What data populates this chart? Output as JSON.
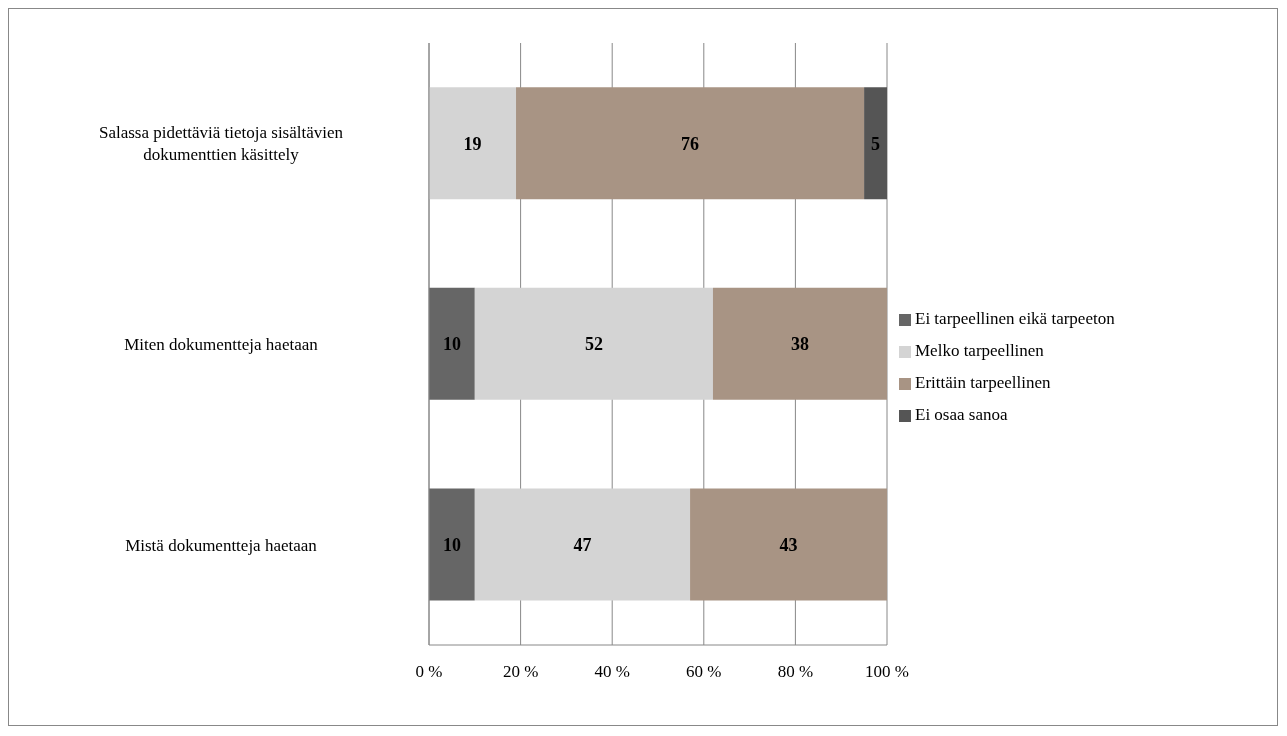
{
  "chart_data": {
    "type": "bar",
    "orientation": "horizontal",
    "stacked": true,
    "categories": [
      "Salassa pidettäviä tietoja sisältävien dokumenttien käsittely",
      "Miten dokumentteja haetaan",
      "Mistä dokumentteja haetaan"
    ],
    "series": [
      {
        "name": "Ei tarpeellinen eikä tarpeeton",
        "color": "#666666",
        "values": [
          null,
          10,
          10
        ]
      },
      {
        "name": "Melko tarpeellinen",
        "color": "#d4d4d4",
        "values": [
          19,
          52,
          47
        ]
      },
      {
        "name": "Erittäin tarpeellinen",
        "color": "#a89484",
        "values": [
          76,
          38,
          43
        ]
      },
      {
        "name": "Ei osaa sanoa",
        "color": "#555555",
        "values": [
          5,
          null,
          null
        ]
      }
    ],
    "xlim": [
      0,
      100
    ],
    "xticks": [
      {
        "value": 0,
        "label": "0 %"
      },
      {
        "value": 20,
        "label": "20 %"
      },
      {
        "value": 40,
        "label": "40 %"
      },
      {
        "value": 60,
        "label": "60 %"
      },
      {
        "value": 80,
        "label": "80 %"
      },
      {
        "value": 100,
        "label": "100 %"
      }
    ],
    "grid": "x",
    "legend": "right",
    "data_labels": true
  }
}
